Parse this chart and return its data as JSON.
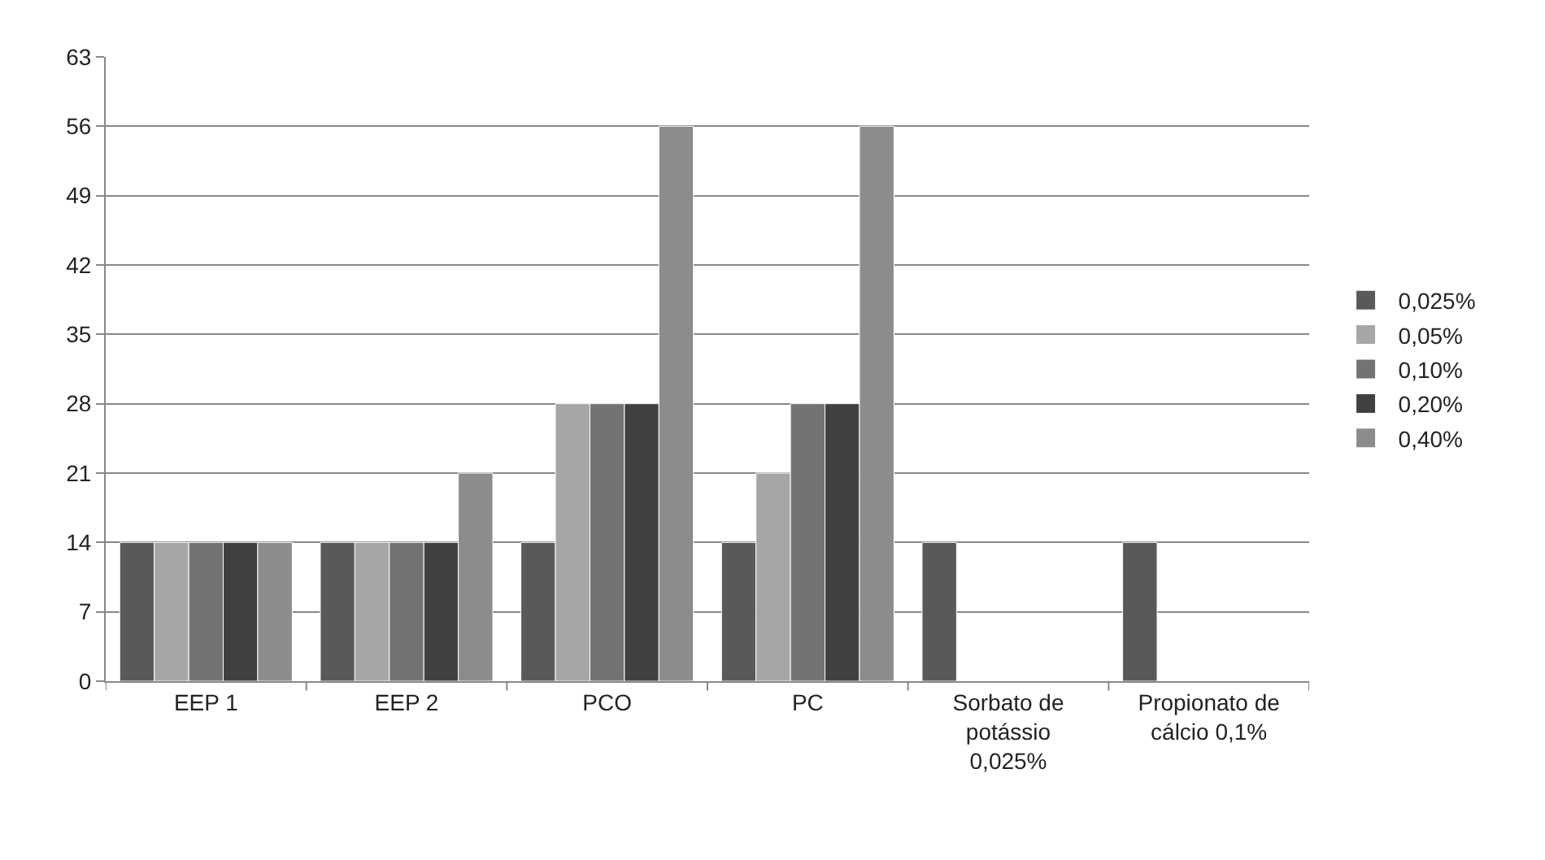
{
  "chart_data": {
    "type": "bar",
    "categories": [
      "EEP 1",
      "EEP 2",
      "PCO",
      "PC",
      "Sorbato de potássio 0,025%",
      "Propionato de cálcio 0,1%"
    ],
    "series": [
      {
        "name": "0,025%",
        "color": "#595959",
        "values": [
          14,
          14,
          14,
          14,
          14,
          14
        ]
      },
      {
        "name": "0,05%",
        "color": "#a6a6a6",
        "values": [
          14,
          14,
          28,
          21,
          null,
          null
        ]
      },
      {
        "name": "0,10%",
        "color": "#737373",
        "values": [
          14,
          14,
          28,
          28,
          null,
          null
        ]
      },
      {
        "name": "0,20%",
        "color": "#404040",
        "values": [
          14,
          14,
          28,
          28,
          null,
          null
        ]
      },
      {
        "name": "0,40%",
        "color": "#8c8c8c",
        "values": [
          14,
          21,
          56,
          56,
          null,
          null
        ]
      }
    ],
    "ylim": [
      0,
      63
    ],
    "yticks": [
      0,
      7,
      14,
      21,
      28,
      35,
      42,
      49,
      56,
      63
    ],
    "grid": "y",
    "legend": "right"
  }
}
